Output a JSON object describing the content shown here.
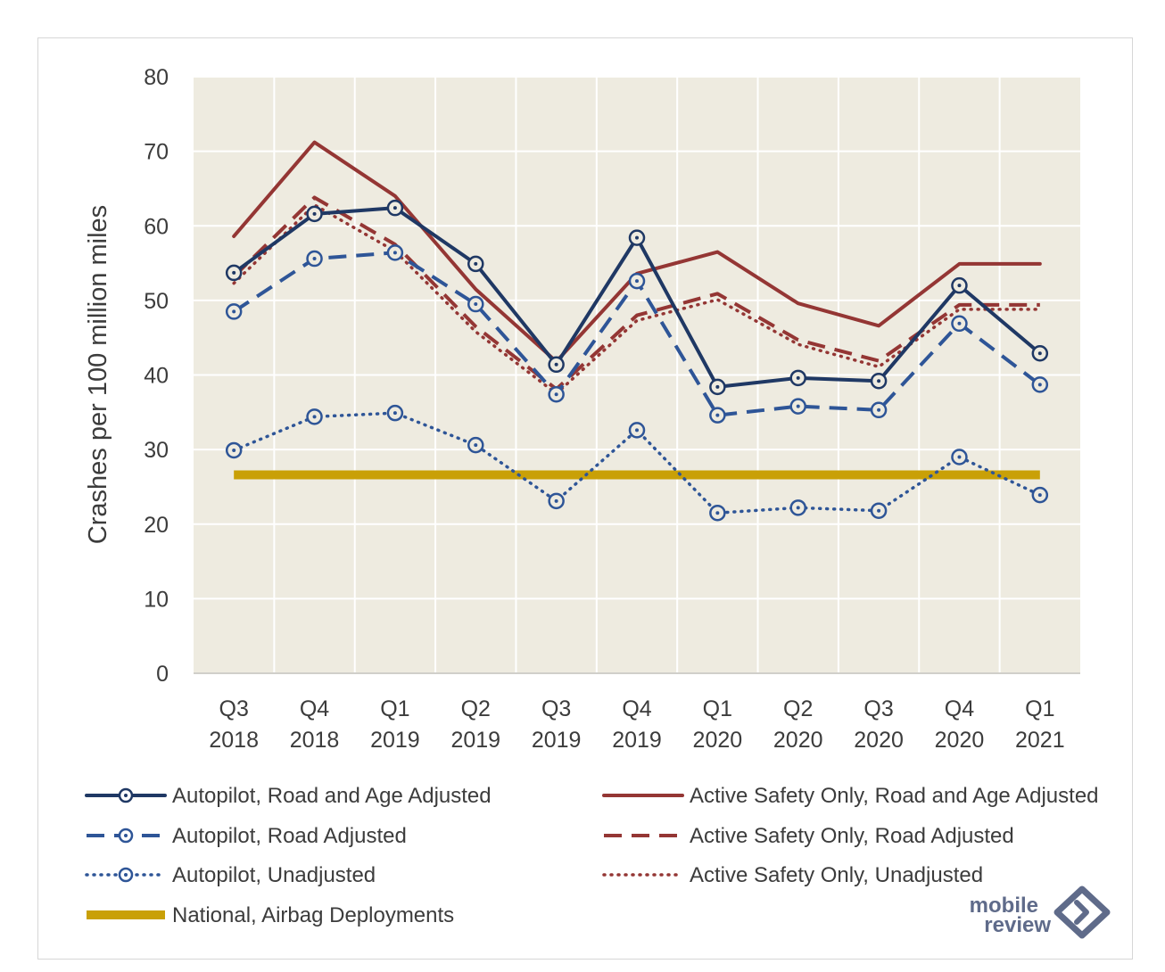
{
  "chart_data": {
    "type": "line",
    "title": "",
    "xlabel": "",
    "ylabel": "Crashes per 100 million miles",
    "ylim": [
      0,
      80
    ],
    "yticks": [
      "0",
      "10",
      "20",
      "30",
      "40",
      "50",
      "60",
      "70",
      "80"
    ],
    "categories": [
      [
        "Q3",
        "2018"
      ],
      [
        "Q4",
        "2018"
      ],
      [
        "Q1",
        "2019"
      ],
      [
        "Q2",
        "2019"
      ],
      [
        "Q3",
        "2019"
      ],
      [
        "Q4",
        "2019"
      ],
      [
        "Q1",
        "2020"
      ],
      [
        "Q2",
        "2020"
      ],
      [
        "Q3",
        "2020"
      ],
      [
        "Q4",
        "2020"
      ],
      [
        "Q1",
        "2021"
      ]
    ],
    "grid": true,
    "legend_position": "bottom",
    "series": [
      {
        "name": "Autopilot, Road and Age Adjusted",
        "values": [
          53.7,
          61.6,
          62.4,
          54.9,
          41.4,
          58.4,
          38.4,
          39.6,
          39.2,
          52.0,
          42.9
        ],
        "color": "#1f3864",
        "dash": "solid",
        "marker": true
      },
      {
        "name": "Active Safety Only, Road and Age Adjusted",
        "values": [
          58.6,
          71.2,
          64.0,
          51.5,
          41.8,
          53.6,
          56.5,
          49.6,
          46.6,
          54.9,
          54.9
        ],
        "color": "#943634",
        "dash": "solid",
        "marker": false
      },
      {
        "name": "Autopilot, Road Adjusted",
        "values": [
          48.5,
          55.6,
          56.4,
          49.5,
          37.4,
          52.6,
          34.6,
          35.8,
          35.3,
          46.9,
          38.7
        ],
        "color": "#2e5597",
        "dash": "dashed",
        "marker": true
      },
      {
        "name": "Active Safety Only, Road Adjusted",
        "values": [
          53.2,
          63.8,
          57.5,
          46.5,
          38.1,
          48.0,
          50.9,
          44.7,
          41.9,
          49.4,
          49.4
        ],
        "color": "#943634",
        "dash": "dashed",
        "marker": false
      },
      {
        "name": "Autopilot, Unadjusted",
        "values": [
          29.9,
          34.4,
          34.9,
          30.6,
          23.1,
          32.6,
          21.5,
          22.2,
          21.8,
          29.0,
          23.9
        ],
        "color": "#2e5597",
        "dash": "dotted",
        "marker": true
      },
      {
        "name": "Active Safety Only, Unadjusted",
        "values": [
          52.3,
          62.8,
          56.6,
          45.8,
          37.5,
          47.3,
          50.1,
          44.1,
          41.1,
          48.8,
          48.8
        ],
        "color": "#943634",
        "dash": "dotted",
        "marker": false
      },
      {
        "name": "National, Airbag Deployments",
        "values": [
          26.6,
          26.6,
          26.6,
          26.6,
          26.6,
          26.6,
          26.6,
          26.6,
          26.6,
          26.6,
          26.6
        ],
        "color": "#c9a007",
        "dash": "thick",
        "marker": false
      }
    ]
  },
  "logo": {
    "line1": "mobile",
    "line2": "review",
    "color": "#5f6b8a"
  }
}
